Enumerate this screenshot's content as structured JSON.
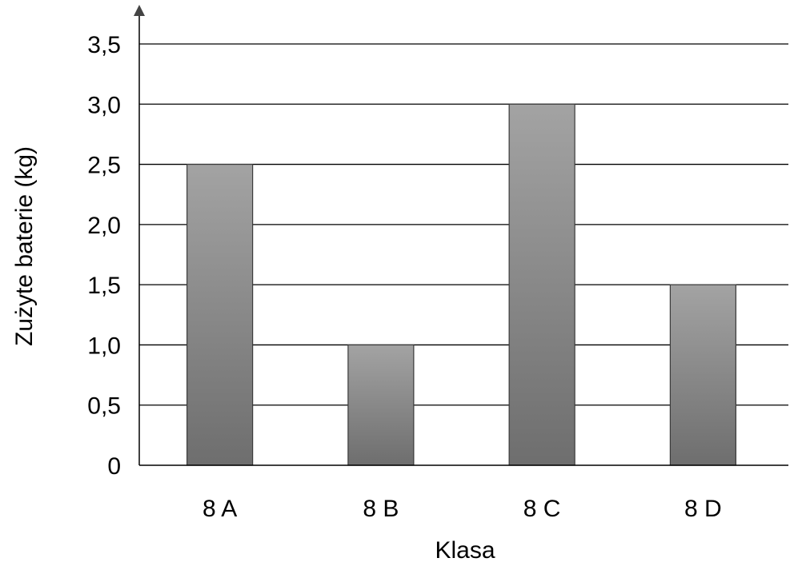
{
  "chart_data": {
    "type": "bar",
    "categories": [
      "8 A",
      "8 B",
      "8 C",
      "8 D"
    ],
    "values": [
      2.5,
      1.0,
      3.0,
      1.5
    ],
    "xlabel": "Klasa",
    "ylabel": "Zużyte baterie (kg)",
    "ylim": [
      0,
      3.5
    ],
    "y_ticks": [
      0,
      0.5,
      1.0,
      1.5,
      2.0,
      2.5,
      3.0,
      3.5
    ],
    "y_tick_labels": [
      "0",
      "0,5",
      "1,0",
      "1,5",
      "2,0",
      "2,5",
      "3,0",
      "3,5"
    ],
    "grid": true,
    "colors": {
      "bar_top": "#a3a3a3",
      "bar_bottom": "#6e6e6e",
      "bar_edge": "#3a3a3a"
    }
  }
}
